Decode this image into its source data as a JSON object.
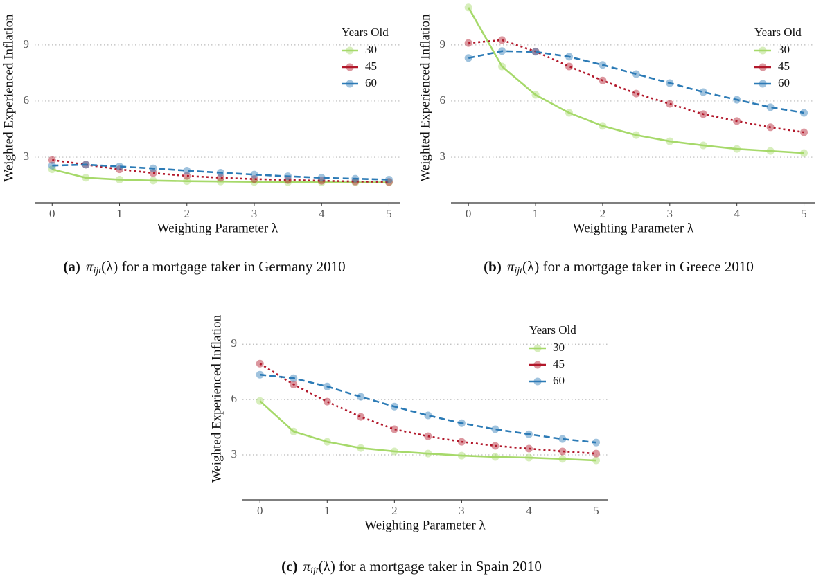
{
  "chart_data": [
    {
      "type": "line",
      "x": [
        0,
        0.5,
        1,
        1.5,
        2,
        2.5,
        3,
        3.5,
        4,
        4.5,
        5
      ],
      "xlabel": "Weighting Parameter λ",
      "ylabel": "Weighted Experienced Inflation",
      "xlim": [
        -0.26,
        5.17
      ],
      "xticks": [
        0,
        1,
        2,
        3,
        4,
        5
      ],
      "ylim": [
        0.56,
        11.4
      ],
      "yticks": [
        3,
        6,
        9
      ],
      "grid": true,
      "legend_title": "Years Old",
      "legend_position": "upper right",
      "caption_label": "(a)",
      "caption_symbol": "π",
      "caption_subscript": "ijt",
      "caption_text": "(λ) for a mortgage taker in Germany 2010",
      "series": [
        {
          "name": "30",
          "color": "#a6d96a",
          "linestyle": "solid",
          "values": [
            2.35,
            1.9,
            1.8,
            1.75,
            1.72,
            1.7,
            1.68,
            1.67,
            1.66,
            1.65,
            1.65
          ]
        },
        {
          "name": "45",
          "color": "#b2182b",
          "linestyle": "dotted",
          "values": [
            2.85,
            2.6,
            2.35,
            2.15,
            2.0,
            1.9,
            1.83,
            1.78,
            1.74,
            1.7,
            1.68
          ]
        },
        {
          "name": "60",
          "color": "#2c7bb6",
          "linestyle": "dashed",
          "values": [
            2.55,
            2.6,
            2.5,
            2.4,
            2.28,
            2.17,
            2.07,
            1.98,
            1.9,
            1.85,
            1.8
          ]
        }
      ]
    },
    {
      "type": "line",
      "x": [
        0,
        0.5,
        1,
        1.5,
        2,
        2.5,
        3,
        3.5,
        4,
        4.5,
        5
      ],
      "xlabel": "Weighting Parameter λ",
      "ylabel": "Weighted Experienced Inflation",
      "xlim": [
        -0.26,
        5.17
      ],
      "xticks": [
        0,
        1,
        2,
        3,
        4,
        5
      ],
      "ylim": [
        0.56,
        11.4
      ],
      "yticks": [
        3,
        6,
        9
      ],
      "grid": true,
      "legend_title": "Years Old",
      "legend_position": "upper right",
      "caption_label": "(b)",
      "caption_symbol": "π",
      "caption_subscript": "ijt",
      "caption_text": "(λ) for a mortgage taker in Greece 2010",
      "series": [
        {
          "name": "30",
          "color": "#a6d96a",
          "linestyle": "solid",
          "values": [
            11.0,
            7.85,
            6.33,
            5.37,
            4.67,
            4.18,
            3.85,
            3.63,
            3.44,
            3.33,
            3.22
          ]
        },
        {
          "name": "45",
          "color": "#b2182b",
          "linestyle": "dotted",
          "values": [
            9.1,
            9.26,
            8.65,
            7.85,
            7.1,
            6.4,
            5.85,
            5.3,
            4.93,
            4.6,
            4.33
          ]
        },
        {
          "name": "60",
          "color": "#2c7bb6",
          "linestyle": "dashed",
          "values": [
            8.3,
            8.67,
            8.63,
            8.37,
            7.93,
            7.44,
            6.96,
            6.48,
            6.07,
            5.67,
            5.37
          ]
        }
      ]
    },
    {
      "type": "line",
      "x": [
        0,
        0.5,
        1,
        1.5,
        2,
        2.5,
        3,
        3.5,
        4,
        4.5,
        5
      ],
      "xlabel": "Weighting Parameter λ",
      "ylabel": "Weighted Experienced Inflation",
      "xlim": [
        -0.26,
        5.17
      ],
      "xticks": [
        0,
        1,
        2,
        3,
        4,
        5
      ],
      "ylim": [
        0.56,
        11.15
      ],
      "yticks": [
        3,
        6,
        9
      ],
      "grid": true,
      "legend_title": "Years Old",
      "legend_position": "upper right",
      "caption_label": "(c)",
      "caption_symbol": "π",
      "caption_subscript": "ijt",
      "caption_text": "(λ) for a mortgage taker in Spain 2010",
      "series": [
        {
          "name": "30",
          "color": "#a6d96a",
          "linestyle": "solid",
          "values": [
            5.92,
            4.27,
            3.71,
            3.37,
            3.19,
            3.07,
            2.96,
            2.89,
            2.85,
            2.78,
            2.7
          ]
        },
        {
          "name": "45",
          "color": "#b2182b",
          "linestyle": "dotted",
          "values": [
            7.95,
            6.82,
            5.89,
            5.06,
            4.39,
            4.01,
            3.71,
            3.49,
            3.34,
            3.19,
            3.07
          ]
        },
        {
          "name": "60",
          "color": "#2c7bb6",
          "linestyle": "dashed",
          "values": [
            7.35,
            7.16,
            6.71,
            6.15,
            5.62,
            5.14,
            4.72,
            4.39,
            4.12,
            3.86,
            3.67
          ]
        }
      ]
    }
  ]
}
